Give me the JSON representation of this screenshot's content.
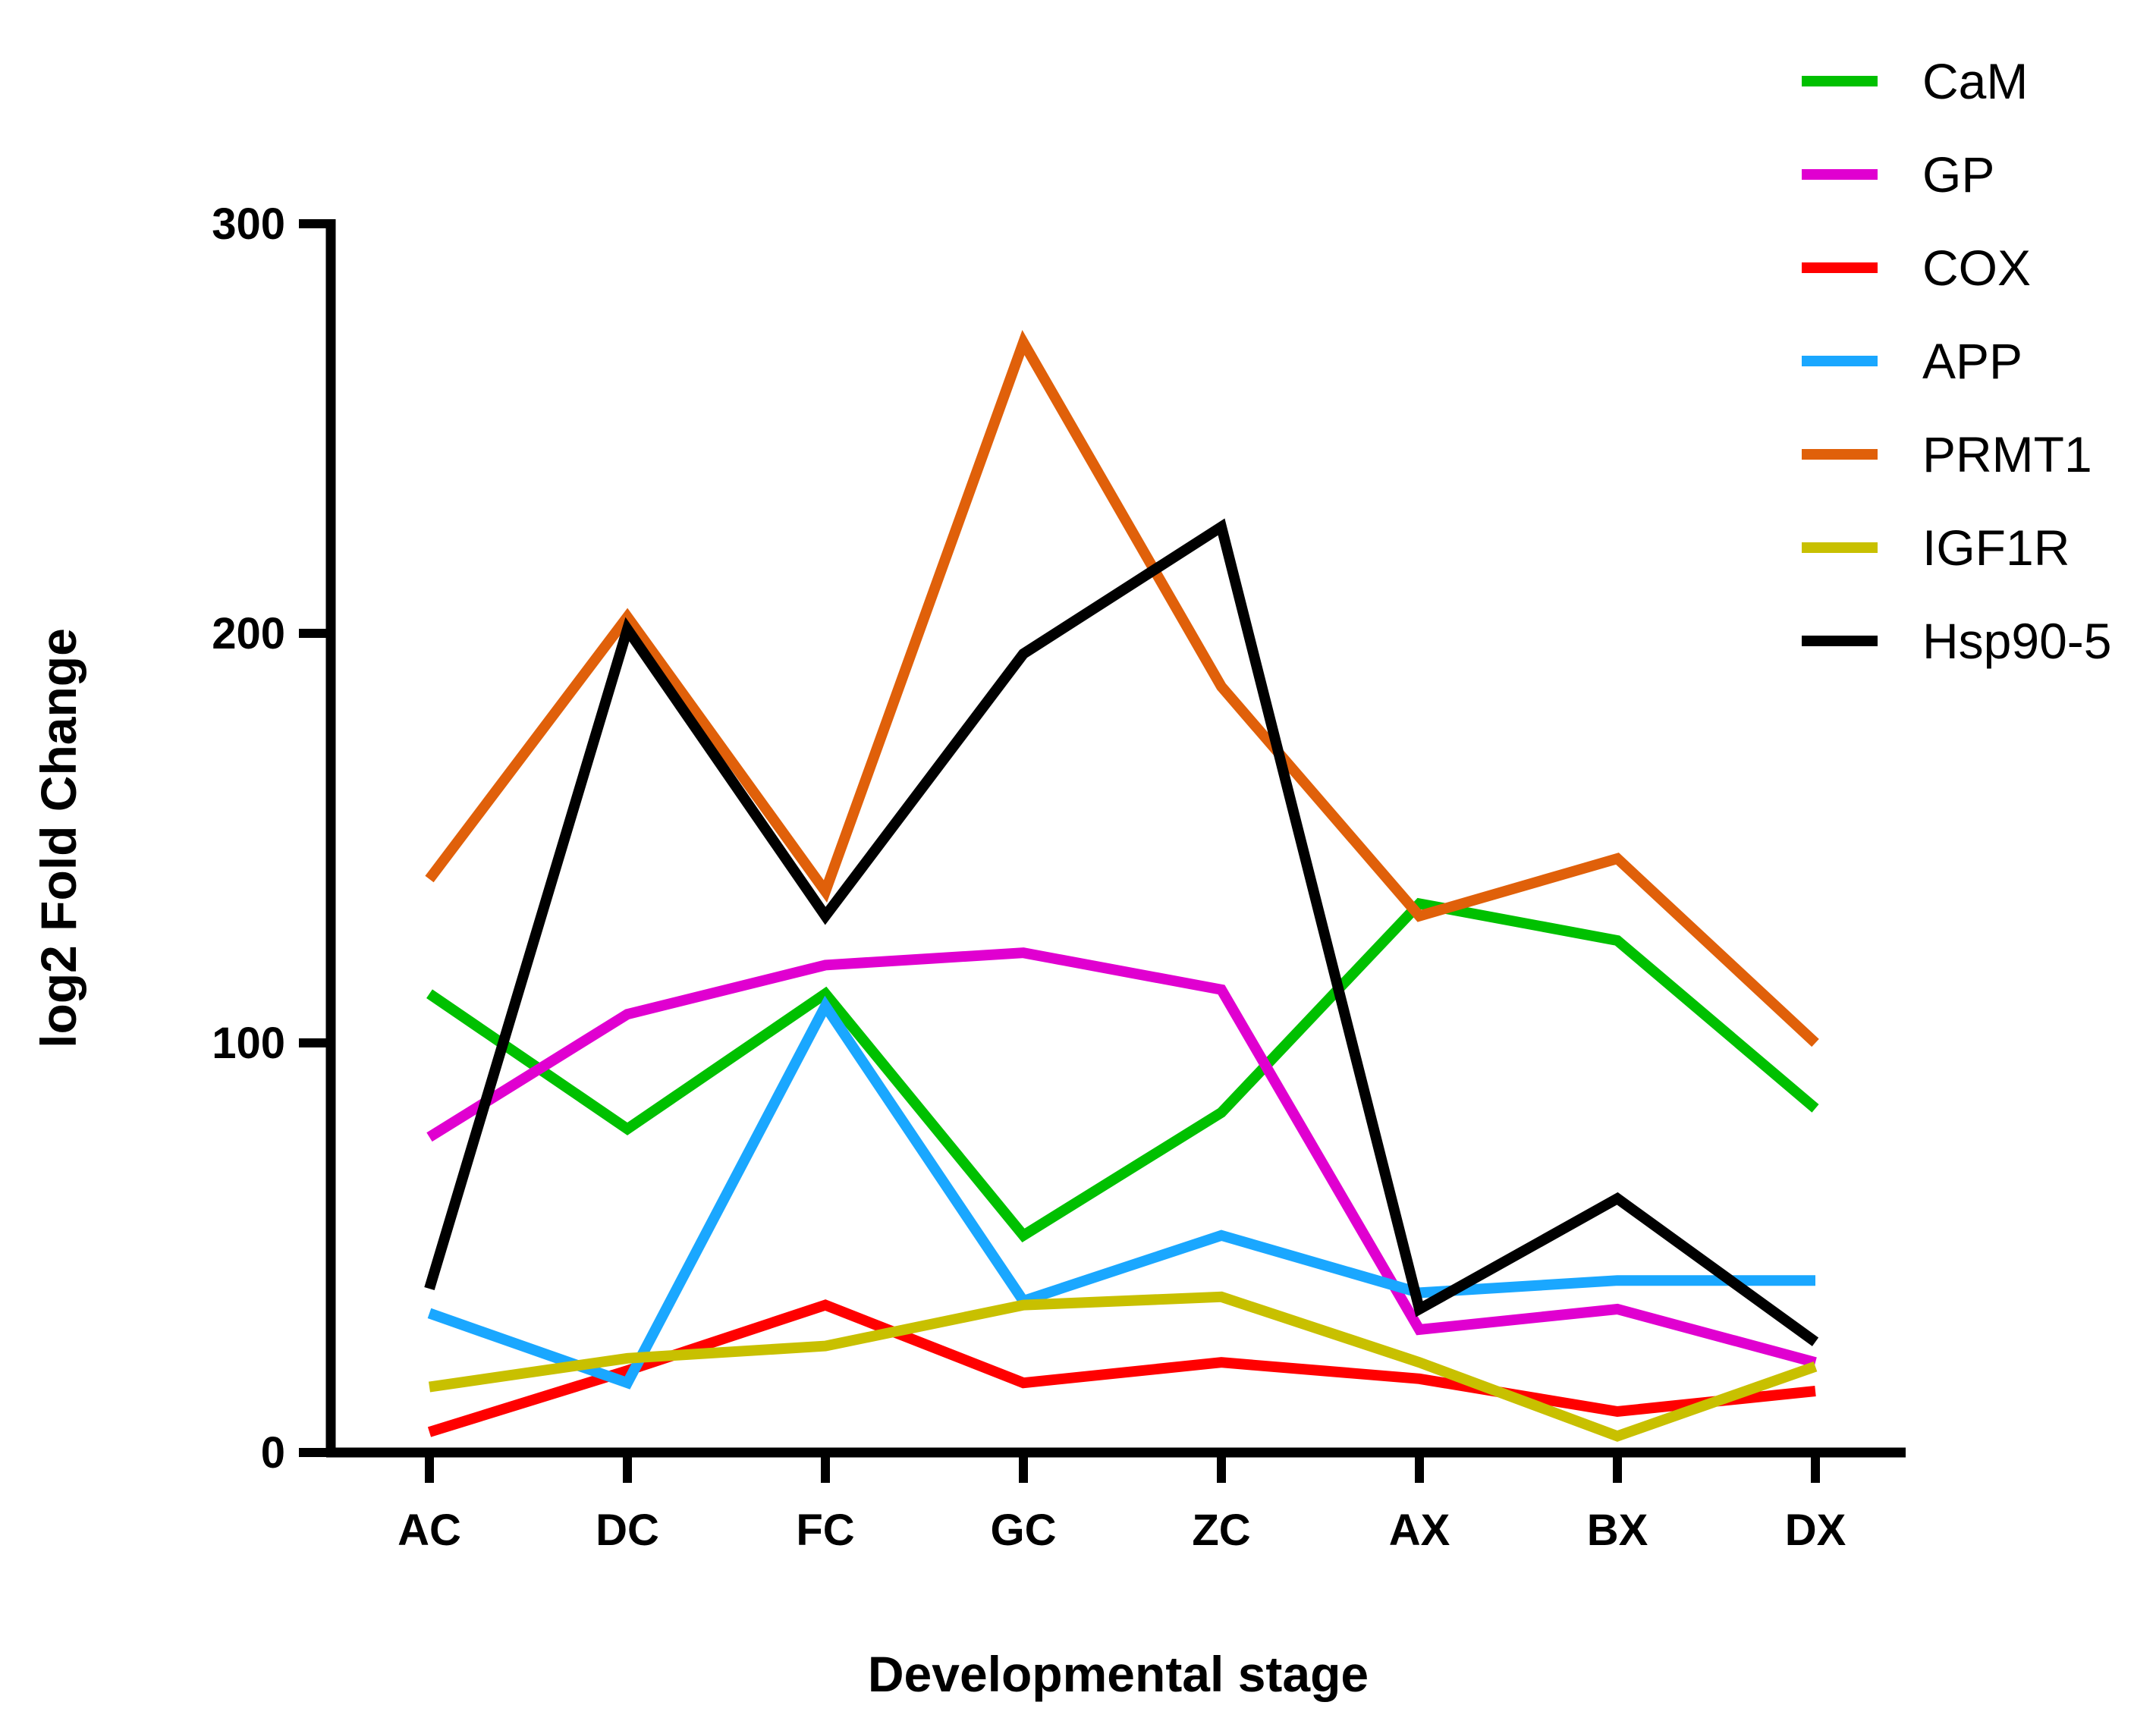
{
  "chart_data": {
    "type": "line",
    "title": "",
    "xlabel": "Developmental stage",
    "ylabel": "log2 Fold Change",
    "categories": [
      "AC",
      "DC",
      "FC",
      "GC",
      "ZC",
      "AX",
      "BX",
      "DX"
    ],
    "ylim": [
      0,
      300
    ],
    "yticks": [
      0,
      100,
      200,
      300
    ],
    "grid": false,
    "legend_position": "top-right",
    "series": [
      {
        "name": "CaM",
        "color": "#00c000",
        "values": [
          112,
          79,
          112,
          53,
          83,
          134,
          125,
          84
        ]
      },
      {
        "name": "GP",
        "color": "#e000d0",
        "values": [
          77,
          107,
          119,
          122,
          113,
          30,
          35,
          22
        ]
      },
      {
        "name": "COX",
        "color": "#ff0000",
        "values": [
          5,
          20,
          36,
          17,
          22,
          18,
          10,
          15
        ]
      },
      {
        "name": "APP",
        "color": "#1aa7ff",
        "values": [
          34,
          17,
          109,
          37,
          53,
          39,
          42,
          42
        ]
      },
      {
        "name": "PRMT1",
        "color": "#e0600a",
        "values": [
          140,
          204,
          137,
          271,
          187,
          131,
          145,
          100
        ]
      },
      {
        "name": "IGF1R",
        "color": "#c8c000",
        "values": [
          16,
          23,
          26,
          36,
          38,
          22,
          4,
          21
        ]
      },
      {
        "name": "Hsp90-5",
        "color": "#000000",
        "values": [
          40,
          201,
          131,
          195,
          226,
          35,
          62,
          27
        ]
      }
    ]
  }
}
